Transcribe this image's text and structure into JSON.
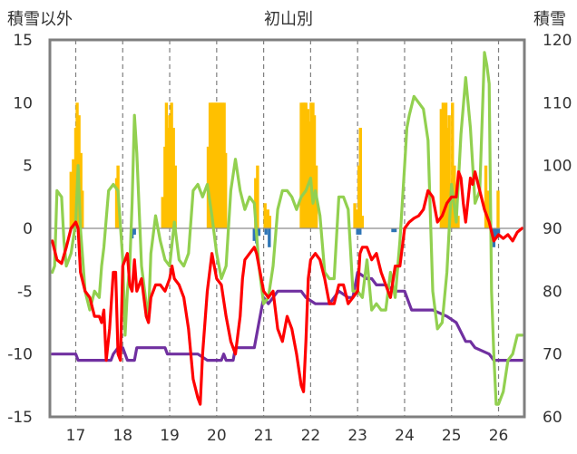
{
  "chart_data": {
    "type": "bar+line",
    "title": "初山別",
    "y_left_label": "積雪以外",
    "y_right_label": "積雪",
    "y_left_range": [
      -15,
      15
    ],
    "y_left_ticks": [
      "15",
      "10",
      "5",
      "0",
      "-5",
      "-10",
      "-15"
    ],
    "y_right_range": [
      60,
      120
    ],
    "y_right_ticks": [
      "120",
      "110",
      "100",
      "90",
      "80",
      "70",
      "60"
    ],
    "x_range": [
      16.45,
      26.55
    ],
    "x_ticks": [
      "17",
      "18",
      "19",
      "20",
      "21",
      "22",
      "23",
      "24",
      "25",
      "26"
    ],
    "grid": "dashed vertical at each x tick",
    "colors": {
      "frame": "#7f7f7f",
      "zero_line": "#8c8c8c",
      "grid": "#7f7f7f",
      "orange_bars": "#ffc000",
      "blue_bars": "#2e75b6",
      "red_line": "#ff0000",
      "green_line": "#92d050",
      "purple_line": "#7030a0"
    },
    "orange_bars": [
      [
        16.9,
        4.5
      ],
      [
        16.95,
        5.5
      ],
      [
        17.0,
        8.0
      ],
      [
        17.03,
        10.0
      ],
      [
        17.07,
        9.0
      ],
      [
        17.11,
        6.0
      ],
      [
        17.14,
        3.0
      ],
      [
        17.87,
        4.0
      ],
      [
        17.9,
        5.0
      ],
      [
        18.85,
        2.5
      ],
      [
        18.9,
        6.5
      ],
      [
        18.93,
        10.0
      ],
      [
        18.97,
        8.0
      ],
      [
        19.0,
        9.0
      ],
      [
        19.04,
        10.0
      ],
      [
        19.08,
        8.0
      ],
      [
        19.12,
        5.0
      ],
      [
        19.82,
        6.5
      ],
      [
        19.86,
        10.0
      ],
      [
        19.9,
        10.0
      ],
      [
        19.93,
        10.0
      ],
      [
        19.97,
        10.0
      ],
      [
        20.0,
        10.0
      ],
      [
        20.04,
        10.0
      ],
      [
        20.08,
        10.0
      ],
      [
        20.12,
        10.0
      ],
      [
        20.16,
        10.0
      ],
      [
        20.19,
        6.0
      ],
      [
        20.83,
        4.0
      ],
      [
        20.87,
        5.0
      ],
      [
        21.03,
        2.0
      ],
      [
        21.09,
        1.5
      ],
      [
        21.13,
        1.0
      ],
      [
        21.8,
        10.0
      ],
      [
        21.84,
        10.0
      ],
      [
        21.87,
        10.0
      ],
      [
        21.9,
        10.0
      ],
      [
        21.94,
        9.5
      ],
      [
        21.97,
        8.5
      ],
      [
        22.01,
        10.0
      ],
      [
        22.05,
        10.0
      ],
      [
        22.08,
        9.0
      ],
      [
        22.12,
        5.0
      ],
      [
        22.94,
        2.0
      ],
      [
        22.99,
        1.5
      ],
      [
        23.03,
        5.0
      ],
      [
        23.06,
        8.0
      ],
      [
        23.1,
        1.0
      ],
      [
        24.78,
        9.5
      ],
      [
        24.82,
        10.0
      ],
      [
        24.85,
        9.0
      ],
      [
        24.88,
        10.0
      ],
      [
        24.92,
        8.0
      ],
      [
        24.95,
        9.0
      ],
      [
        24.98,
        3.0
      ],
      [
        25.02,
        10.0
      ],
      [
        25.06,
        5.0
      ],
      [
        25.1,
        3.0
      ],
      [
        25.14,
        1.0
      ],
      [
        25.73,
        5.0
      ],
      [
        25.77,
        3.0
      ],
      [
        25.8,
        2.0
      ],
      [
        25.99,
        3.0
      ]
    ],
    "blue_bars": [
      [
        18.2,
        -0.8
      ],
      [
        18.25,
        -0.5
      ],
      [
        20.8,
        -1.0
      ],
      [
        20.85,
        -1.2
      ],
      [
        20.9,
        -0.6
      ],
      [
        21.05,
        -0.5
      ],
      [
        21.12,
        -1.5
      ],
      [
        23.0,
        -0.5
      ],
      [
        23.05,
        -0.5
      ],
      [
        23.75,
        -0.3
      ],
      [
        23.8,
        -0.3
      ],
      [
        25.85,
        -0.5
      ],
      [
        25.9,
        -1.5
      ],
      [
        25.95,
        -0.8
      ],
      [
        26.0,
        -0.4
      ]
    ],
    "red_line": [
      [
        16.5,
        -1.0
      ],
      [
        16.6,
        -2.5
      ],
      [
        16.7,
        -2.8
      ],
      [
        16.8,
        -1.5
      ],
      [
        16.9,
        0.0
      ],
      [
        17.0,
        0.5
      ],
      [
        17.05,
        0.0
      ],
      [
        17.1,
        -3.5
      ],
      [
        17.2,
        -5.0
      ],
      [
        17.3,
        -5.5
      ],
      [
        17.4,
        -7.0
      ],
      [
        17.5,
        -7.0
      ],
      [
        17.55,
        -7.5
      ],
      [
        17.6,
        -6.5
      ],
      [
        17.65,
        -10.5
      ],
      [
        17.72,
        -8.0
      ],
      [
        17.8,
        -3.5
      ],
      [
        17.85,
        -3.5
      ],
      [
        17.9,
        -10.0
      ],
      [
        17.95,
        -10.5
      ],
      [
        18.0,
        -3.0
      ],
      [
        18.05,
        -2.5
      ],
      [
        18.1,
        -2.0
      ],
      [
        18.15,
        -4.5
      ],
      [
        18.2,
        -5.0
      ],
      [
        18.25,
        -2.5
      ],
      [
        18.3,
        -5.0
      ],
      [
        18.4,
        -4.0
      ],
      [
        18.5,
        -7.0
      ],
      [
        18.55,
        -7.5
      ],
      [
        18.6,
        -5.5
      ],
      [
        18.7,
        -4.5
      ],
      [
        18.8,
        -4.5
      ],
      [
        18.9,
        -5.0
      ],
      [
        19.0,
        -4.0
      ],
      [
        19.05,
        -3.0
      ],
      [
        19.1,
        -4.0
      ],
      [
        19.2,
        -4.5
      ],
      [
        19.3,
        -5.5
      ],
      [
        19.4,
        -8.0
      ],
      [
        19.5,
        -12.0
      ],
      [
        19.6,
        -13.5
      ],
      [
        19.65,
        -14.0
      ],
      [
        19.7,
        -10.0
      ],
      [
        19.8,
        -5.0
      ],
      [
        19.9,
        -2.0
      ],
      [
        20.0,
        -4.0
      ],
      [
        20.1,
        -4.5
      ],
      [
        20.2,
        -7.0
      ],
      [
        20.3,
        -9.0
      ],
      [
        20.4,
        -10.0
      ],
      [
        20.5,
        -7.0
      ],
      [
        20.55,
        -4.0
      ],
      [
        20.6,
        -2.5
      ],
      [
        20.7,
        -2.0
      ],
      [
        20.8,
        -1.5
      ],
      [
        20.85,
        -2.0
      ],
      [
        20.9,
        -3.0
      ],
      [
        21.0,
        -5.0
      ],
      [
        21.1,
        -5.5
      ],
      [
        21.2,
        -5.0
      ],
      [
        21.3,
        -8.0
      ],
      [
        21.4,
        -9.0
      ],
      [
        21.5,
        -7.0
      ],
      [
        21.6,
        -8.0
      ],
      [
        21.7,
        -10.0
      ],
      [
        21.8,
        -12.5
      ],
      [
        21.85,
        -13.0
      ],
      [
        21.9,
        -9.0
      ],
      [
        21.95,
        -4.0
      ],
      [
        22.0,
        -2.5
      ],
      [
        22.1,
        -2.0
      ],
      [
        22.2,
        -2.5
      ],
      [
        22.3,
        -4.0
      ],
      [
        22.4,
        -6.0
      ],
      [
        22.5,
        -6.0
      ],
      [
        22.6,
        -4.5
      ],
      [
        22.7,
        -4.5
      ],
      [
        22.8,
        -6.0
      ],
      [
        22.9,
        -5.5
      ],
      [
        23.0,
        -5.0
      ],
      [
        23.05,
        -2.0
      ],
      [
        23.1,
        -1.5
      ],
      [
        23.2,
        -1.5
      ],
      [
        23.3,
        -2.5
      ],
      [
        23.4,
        -2.0
      ],
      [
        23.5,
        -3.5
      ],
      [
        23.6,
        -4.5
      ],
      [
        23.7,
        -5.5
      ],
      [
        23.8,
        -3.0
      ],
      [
        23.9,
        -3.0
      ],
      [
        24.0,
        0.0
      ],
      [
        24.1,
        0.5
      ],
      [
        24.2,
        0.8
      ],
      [
        24.3,
        1.0
      ],
      [
        24.4,
        1.5
      ],
      [
        24.5,
        3.0
      ],
      [
        24.6,
        2.5
      ],
      [
        24.7,
        0.5
      ],
      [
        24.8,
        1.0
      ],
      [
        24.9,
        2.0
      ],
      [
        25.0,
        2.5
      ],
      [
        25.1,
        2.5
      ],
      [
        25.15,
        4.5
      ],
      [
        25.2,
        4.0
      ],
      [
        25.25,
        2.0
      ],
      [
        25.3,
        0.5
      ],
      [
        25.4,
        4.0
      ],
      [
        25.45,
        3.5
      ],
      [
        25.5,
        4.5
      ],
      [
        25.6,
        3.0
      ],
      [
        25.7,
        1.5
      ],
      [
        25.8,
        0.5
      ],
      [
        25.9,
        -1.0
      ],
      [
        26.0,
        -0.5
      ],
      [
        26.1,
        -0.8
      ],
      [
        26.2,
        -0.5
      ],
      [
        26.3,
        -1.0
      ],
      [
        26.4,
        -0.3
      ],
      [
        26.5,
        0.0
      ]
    ],
    "green_line": [
      [
        16.5,
        -3.5
      ],
      [
        16.55,
        -3.0
      ],
      [
        16.6,
        3.0
      ],
      [
        16.7,
        2.5
      ],
      [
        16.75,
        -1.0
      ],
      [
        16.8,
        -3.0
      ],
      [
        16.9,
        -2.0
      ],
      [
        17.0,
        0.5
      ],
      [
        17.05,
        5.0
      ],
      [
        17.1,
        0.0
      ],
      [
        17.2,
        -5.0
      ],
      [
        17.3,
        -6.5
      ],
      [
        17.4,
        -5.0
      ],
      [
        17.5,
        -5.5
      ],
      [
        17.55,
        -3.0
      ],
      [
        17.6,
        -1.5
      ],
      [
        17.7,
        3.0
      ],
      [
        17.8,
        3.5
      ],
      [
        17.9,
        3.0
      ],
      [
        18.0,
        -2.5
      ],
      [
        18.05,
        -8.5
      ],
      [
        18.1,
        -5.0
      ],
      [
        18.15,
        -3.0
      ],
      [
        18.2,
        2.0
      ],
      [
        18.25,
        9.0
      ],
      [
        18.3,
        6.0
      ],
      [
        18.4,
        -3.0
      ],
      [
        18.5,
        -6.0
      ],
      [
        18.55,
        -7.0
      ],
      [
        18.6,
        -2.0
      ],
      [
        18.7,
        1.0
      ],
      [
        18.8,
        -1.0
      ],
      [
        18.9,
        -2.5
      ],
      [
        19.0,
        -3.0
      ],
      [
        19.1,
        0.5
      ],
      [
        19.2,
        -2.5
      ],
      [
        19.3,
        -3.0
      ],
      [
        19.4,
        -2.0
      ],
      [
        19.5,
        3.0
      ],
      [
        19.6,
        3.5
      ],
      [
        19.7,
        2.5
      ],
      [
        19.8,
        3.5
      ],
      [
        19.9,
        1.0
      ],
      [
        20.0,
        -2.0
      ],
      [
        20.1,
        -4.0
      ],
      [
        20.2,
        -3.0
      ],
      [
        20.3,
        3.0
      ],
      [
        20.4,
        5.5
      ],
      [
        20.5,
        3.0
      ],
      [
        20.6,
        1.5
      ],
      [
        20.7,
        2.5
      ],
      [
        20.8,
        2.0
      ],
      [
        20.9,
        -3.0
      ],
      [
        21.0,
        -6.0
      ],
      [
        21.1,
        -5.5
      ],
      [
        21.2,
        -3.0
      ],
      [
        21.3,
        1.5
      ],
      [
        21.4,
        3.0
      ],
      [
        21.5,
        3.0
      ],
      [
        21.6,
        2.5
      ],
      [
        21.7,
        1.5
      ],
      [
        21.8,
        2.5
      ],
      [
        21.9,
        3.0
      ],
      [
        22.0,
        4.0
      ],
      [
        22.05,
        2.0
      ],
      [
        22.1,
        3.0
      ],
      [
        22.2,
        1.0
      ],
      [
        22.3,
        -3.5
      ],
      [
        22.4,
        -4.0
      ],
      [
        22.5,
        -4.0
      ],
      [
        22.6,
        2.5
      ],
      [
        22.7,
        2.5
      ],
      [
        22.8,
        1.5
      ],
      [
        22.9,
        -5.0
      ],
      [
        23.0,
        -5.0
      ],
      [
        23.1,
        -5.5
      ],
      [
        23.2,
        -2.5
      ],
      [
        23.3,
        -6.5
      ],
      [
        23.4,
        -6.0
      ],
      [
        23.5,
        -6.5
      ],
      [
        23.6,
        -6.5
      ],
      [
        23.7,
        -3.5
      ],
      [
        23.8,
        -5.5
      ],
      [
        23.9,
        -1.0
      ],
      [
        24.0,
        5.0
      ],
      [
        24.05,
        8.0
      ],
      [
        24.1,
        9.0
      ],
      [
        24.2,
        10.5
      ],
      [
        24.3,
        10.0
      ],
      [
        24.4,
        9.5
      ],
      [
        24.5,
        7.0
      ],
      [
        24.6,
        -5.0
      ],
      [
        24.7,
        -8.0
      ],
      [
        24.8,
        -7.5
      ],
      [
        24.9,
        -3.5
      ],
      [
        25.0,
        3.5
      ],
      [
        25.1,
        0.5
      ],
      [
        25.2,
        7.5
      ],
      [
        25.3,
        12.0
      ],
      [
        25.35,
        10.0
      ],
      [
        25.4,
        8.0
      ],
      [
        25.5,
        2.0
      ],
      [
        25.6,
        3.0
      ],
      [
        25.7,
        14.0
      ],
      [
        25.75,
        13.0
      ],
      [
        25.8,
        11.5
      ],
      [
        25.85,
        -5.0
      ],
      [
        25.9,
        -10.0
      ],
      [
        25.95,
        -14.0
      ],
      [
        26.0,
        -14.0
      ],
      [
        26.1,
        -13.0
      ],
      [
        26.2,
        -10.5
      ],
      [
        26.3,
        -10.0
      ],
      [
        26.4,
        -8.5
      ],
      [
        26.5,
        -8.5
      ]
    ],
    "purple_line": [
      [
        16.5,
        70
      ],
      [
        17.0,
        70
      ],
      [
        17.05,
        69
      ],
      [
        17.75,
        69
      ],
      [
        17.8,
        70
      ],
      [
        17.9,
        71
      ],
      [
        18.0,
        71
      ],
      [
        18.05,
        70
      ],
      [
        18.1,
        69
      ],
      [
        18.25,
        69
      ],
      [
        18.3,
        71
      ],
      [
        18.9,
        71
      ],
      [
        18.95,
        70
      ],
      [
        19.6,
        70
      ],
      [
        19.8,
        69
      ],
      [
        20.1,
        69
      ],
      [
        20.15,
        70
      ],
      [
        20.2,
        69
      ],
      [
        20.35,
        69
      ],
      [
        20.4,
        71
      ],
      [
        20.8,
        71
      ],
      [
        20.9,
        75
      ],
      [
        21.0,
        79
      ],
      [
        21.1,
        78
      ],
      [
        21.2,
        79
      ],
      [
        21.3,
        80
      ],
      [
        21.6,
        80
      ],
      [
        21.8,
        80
      ],
      [
        21.9,
        79
      ],
      [
        22.1,
        78
      ],
      [
        22.4,
        78
      ],
      [
        22.5,
        79
      ],
      [
        22.6,
        80
      ],
      [
        22.8,
        79
      ],
      [
        22.9,
        79
      ],
      [
        23.0,
        83
      ],
      [
        23.2,
        82
      ],
      [
        23.3,
        82
      ],
      [
        23.4,
        81
      ],
      [
        23.6,
        81
      ],
      [
        23.8,
        80
      ],
      [
        24.0,
        80
      ],
      [
        24.1,
        78
      ],
      [
        24.15,
        77
      ],
      [
        24.6,
        77
      ],
      [
        24.9,
        76
      ],
      [
        25.1,
        75
      ],
      [
        25.3,
        72
      ],
      [
        25.4,
        72
      ],
      [
        25.5,
        71
      ],
      [
        25.8,
        70
      ],
      [
        25.9,
        69
      ],
      [
        26.5,
        69
      ]
    ]
  }
}
